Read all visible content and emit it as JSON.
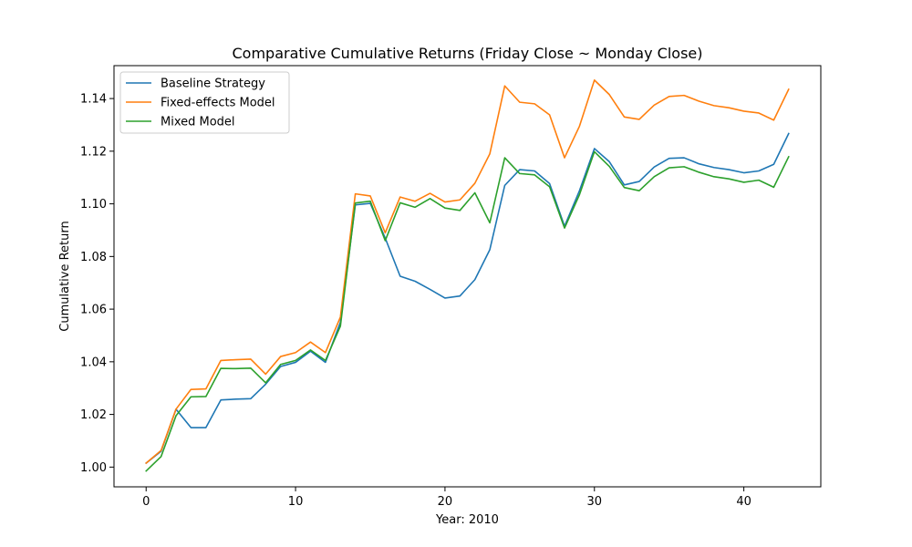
{
  "chart_data": {
    "type": "line",
    "title": "Comparative Cumulative Returns (Friday Close ~ Monday Close)",
    "xlabel": "Year: 2010",
    "ylabel": "Cumulative Return",
    "xlim": [
      -2.15,
      45.15
    ],
    "ylim": [
      0.9925,
      1.1525
    ],
    "xticks": [
      0,
      10,
      20,
      30,
      40
    ],
    "yticks": [
      1.0,
      1.02,
      1.04,
      1.06,
      1.08,
      1.1,
      1.12,
      1.14
    ],
    "ytick_labels": [
      "1.00",
      "1.02",
      "1.04",
      "1.06",
      "1.08",
      "1.10",
      "1.12",
      "1.14"
    ],
    "legend_position": "upper-left",
    "grid": false,
    "x": [
      0,
      1,
      2,
      3,
      4,
      5,
      6,
      7,
      8,
      9,
      10,
      11,
      12,
      13,
      14,
      15,
      16,
      17,
      18,
      19,
      20,
      21,
      22,
      23,
      24,
      25,
      26,
      27,
      28,
      29,
      30,
      31,
      32,
      33,
      34,
      35,
      36,
      37,
      38,
      39,
      40,
      41,
      42,
      43
    ],
    "series": [
      {
        "name": "Baseline Strategy",
        "color": "#1f77b4",
        "values": [
          1.0015,
          1.006,
          1.022,
          1.015,
          1.015,
          1.0255,
          1.0258,
          1.026,
          1.0315,
          1.0382,
          1.0398,
          1.044,
          1.0398,
          1.055,
          1.0996,
          1.1002,
          1.087,
          1.0725,
          1.0706,
          1.0675,
          1.0642,
          1.065,
          1.0712,
          1.0826,
          1.107,
          1.113,
          1.1125,
          1.1077,
          1.0915,
          1.105,
          1.121,
          1.116,
          1.1072,
          1.1085,
          1.114,
          1.1173,
          1.1175,
          1.1152,
          1.1138,
          1.113,
          1.1118,
          1.1125,
          1.115,
          1.1267
        ]
      },
      {
        "name": "Fixed-effects Model",
        "color": "#ff7f0e",
        "values": [
          1.0015,
          1.0063,
          1.022,
          1.0295,
          1.0297,
          1.0405,
          1.0408,
          1.041,
          1.0353,
          1.042,
          1.0435,
          1.0475,
          1.0435,
          1.057,
          1.1038,
          1.103,
          1.089,
          1.1026,
          1.101,
          1.104,
          1.1007,
          1.1015,
          1.1078,
          1.119,
          1.1448,
          1.1386,
          1.138,
          1.1338,
          1.1175,
          1.1295,
          1.147,
          1.1415,
          1.133,
          1.1321,
          1.1375,
          1.1408,
          1.1412,
          1.139,
          1.1373,
          1.1365,
          1.1352,
          1.1345,
          1.1318,
          1.1435
        ]
      },
      {
        "name": "Mixed Model",
        "color": "#2ca02c",
        "values": [
          0.9985,
          1.004,
          1.0195,
          1.0267,
          1.0268,
          1.0375,
          1.0374,
          1.0376,
          1.032,
          1.039,
          1.0405,
          1.0445,
          1.0405,
          1.0535,
          1.1003,
          1.101,
          1.086,
          1.1004,
          1.0987,
          1.102,
          1.0984,
          1.0975,
          1.1042,
          1.0928,
          1.1175,
          1.1115,
          1.111,
          1.1065,
          1.0908,
          1.1035,
          1.1198,
          1.1142,
          1.1062,
          1.105,
          1.1103,
          1.1137,
          1.1141,
          1.112,
          1.1103,
          1.1095,
          1.1082,
          1.109,
          1.1063,
          1.1179
        ]
      }
    ]
  }
}
